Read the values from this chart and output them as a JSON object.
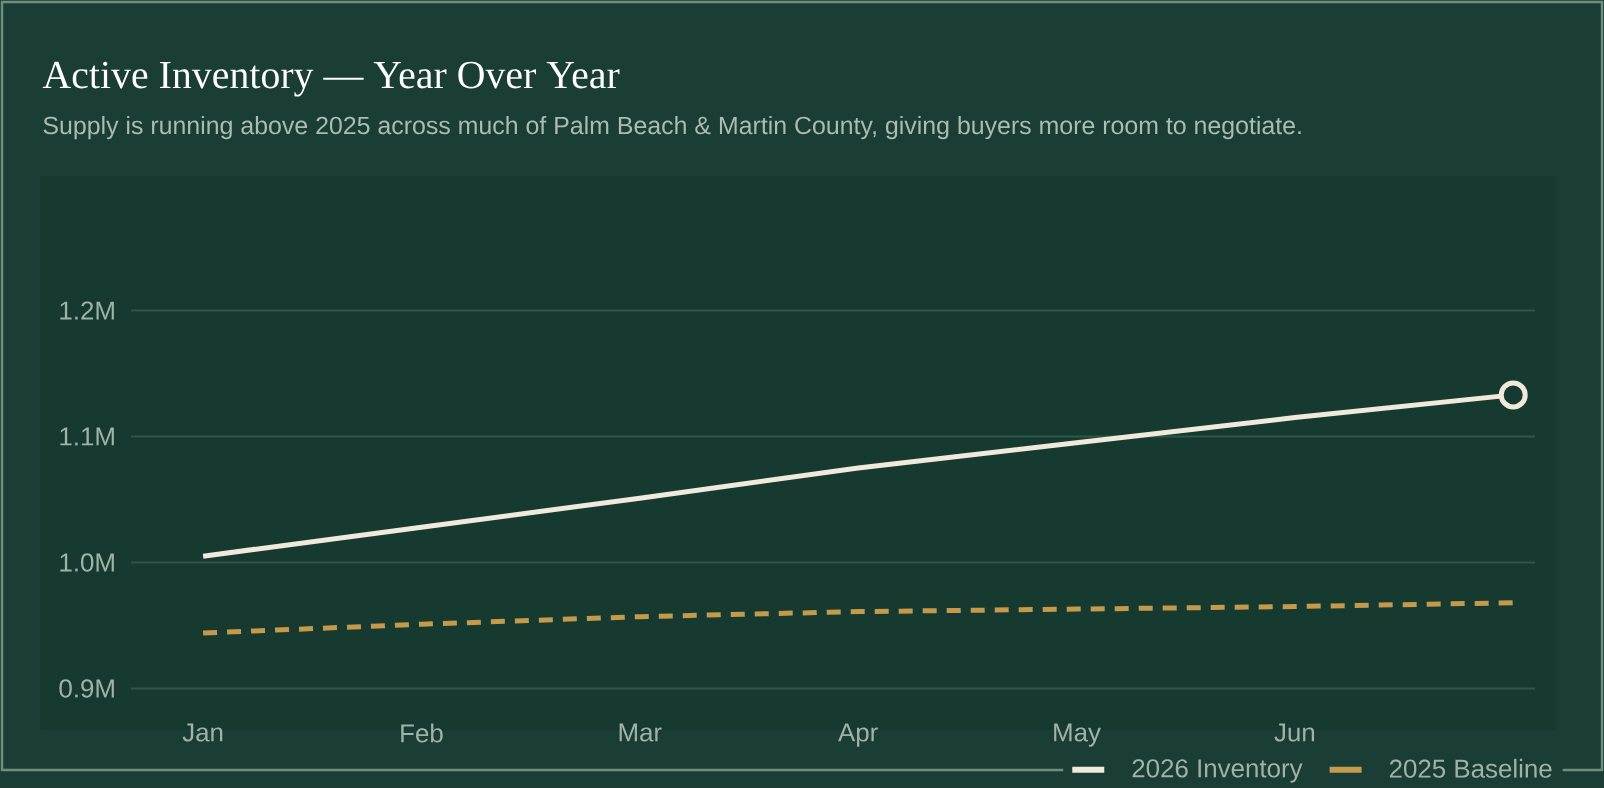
{
  "chart_data": {
    "type": "line",
    "title": "Active Inventory — Year Over Year",
    "subtitle": "Supply is running above 2025 across much of Palm Beach & Martin County, giving buyers more room to negotiate.",
    "categories": [
      "Jan",
      "Feb",
      "Mar",
      "Apr",
      "May",
      "Jun",
      null
    ],
    "series": [
      {
        "name": "2026 Inventory",
        "color": "#f0e9dc",
        "line_style": "solid",
        "values": [
          1005000,
          1028000,
          1051000,
          1075000,
          1095000,
          1115000,
          1133000
        ]
      },
      {
        "name": "2025 Baseline",
        "color": "#c49a4c",
        "line_style": "dashed",
        "values": [
          944000,
          951000,
          957000,
          961000,
          963000,
          965000,
          968000
        ]
      },
      {
        "type": "scatter",
        "color": "#f0e9dc",
        "marker": "circle",
        "values": [
          null,
          null,
          null,
          null,
          null,
          null,
          1133000
        ]
      }
    ],
    "ylim": [
      900000,
      1200000
    ],
    "yticks": [
      {
        "value": 900000,
        "label": "0.9M"
      },
      {
        "value": 1000000,
        "label": "1.0M"
      },
      {
        "value": 1100000,
        "label": "1.1M"
      },
      {
        "value": 1200000,
        "label": "1.2M"
      }
    ],
    "grid": "y",
    "legend": "bottom right"
  }
}
